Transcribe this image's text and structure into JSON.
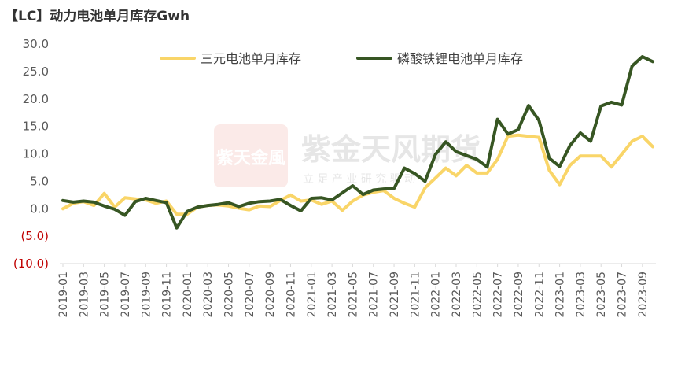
{
  "chart_data": {
    "type": "line",
    "title": "【LC】动力电池单月库存Gwh",
    "xlabel": "",
    "ylabel": "",
    "ylim": [
      -10,
      30
    ],
    "yticks": [
      30,
      25,
      20,
      15,
      10,
      5,
      0,
      -5,
      -10
    ],
    "ytick_labels": [
      "30.0",
      "25.0",
      "20.0",
      "15.0",
      "10.0",
      "5.0",
      "0.0",
      "(5.0)",
      "(10.0)"
    ],
    "negative_tick_color": "#c00000",
    "legend_position": "top",
    "grid": false,
    "x": [
      "2019-01",
      "2019-02",
      "2019-03",
      "2019-04",
      "2019-05",
      "2019-06",
      "2019-07",
      "2019-08",
      "2019-09",
      "2019-10",
      "2019-11",
      "2019-12",
      "2020-01",
      "2020-02",
      "2020-03",
      "2020-04",
      "2020-05",
      "2020-06",
      "2020-07",
      "2020-08",
      "2020-09",
      "2020-10",
      "2020-11",
      "2020-12",
      "2021-01",
      "2021-02",
      "2021-03",
      "2021-04",
      "2021-05",
      "2021-06",
      "2021-07",
      "2021-08",
      "2021-09",
      "2021-10",
      "2021-11",
      "2021-12",
      "2022-01",
      "2022-02",
      "2022-03",
      "2022-04",
      "2022-05",
      "2022-06",
      "2022-07",
      "2022-08",
      "2022-09",
      "2022-10",
      "2022-11",
      "2022-12",
      "2023-01",
      "2023-02",
      "2023-03",
      "2023-04",
      "2023-05",
      "2023-06",
      "2023-07",
      "2023-08",
      "2023-09",
      "2023-10"
    ],
    "x_tick_labels": [
      "2019-01",
      "2019-03",
      "2019-05",
      "2019-07",
      "2019-09",
      "2019-11",
      "2020-01",
      "2020-03",
      "2020-05",
      "2020-07",
      "2020-09",
      "2020-11",
      "2021-01",
      "2021-03",
      "2021-05",
      "2021-07",
      "2021-09",
      "2021-11",
      "2022-01",
      "2022-03",
      "2022-05",
      "2022-07",
      "2022-09",
      "2022-11",
      "2023-01",
      "2023-03",
      "2023-05",
      "2023-07",
      "2023-09"
    ],
    "series": [
      {
        "name": "三元电池单月库存",
        "color": "#f9d568",
        "values": [
          0.0,
          1.0,
          1.3,
          0.6,
          2.8,
          0.3,
          2.0,
          1.8,
          1.6,
          1.0,
          1.4,
          -1.0,
          -1.0,
          0.3,
          0.6,
          0.7,
          0.5,
          0.1,
          -0.2,
          0.5,
          0.4,
          1.5,
          2.5,
          1.4,
          1.6,
          0.8,
          1.4,
          -0.3,
          1.4,
          2.5,
          3.0,
          3.3,
          1.9,
          1.0,
          0.3,
          3.8,
          5.6,
          7.4,
          6.0,
          7.9,
          6.5,
          6.5,
          9.0,
          13.2,
          13.4,
          13.2,
          13.0,
          7.0,
          4.4,
          7.9,
          9.6,
          9.6,
          9.6,
          7.6,
          9.9,
          12.3,
          13.2,
          11.3
        ]
      },
      {
        "name": "磷酸铁锂电池单月库存",
        "color": "#375623",
        "values": [
          1.5,
          1.2,
          1.4,
          1.2,
          0.5,
          -0.1,
          -1.2,
          1.3,
          1.9,
          1.5,
          1.1,
          -3.5,
          -0.5,
          0.3,
          0.6,
          0.8,
          1.1,
          0.4,
          1.0,
          1.3,
          1.4,
          1.7,
          0.6,
          -0.4,
          1.9,
          2.0,
          1.6,
          2.9,
          4.2,
          2.6,
          3.4,
          3.6,
          3.7,
          7.4,
          6.4,
          5.0,
          9.9,
          12.2,
          10.4,
          9.7,
          9.0,
          7.6,
          16.3,
          13.6,
          14.4,
          18.8,
          16.1,
          9.2,
          7.7,
          11.5,
          13.8,
          12.3,
          18.7,
          19.4,
          18.9,
          26.0,
          27.7,
          26.8
        ]
      }
    ]
  },
  "watermark": {
    "logo_text": "紫天金風",
    "name": "紫金天风期货",
    "slogan": "立 足 产 业    研 究 驱 动"
  }
}
